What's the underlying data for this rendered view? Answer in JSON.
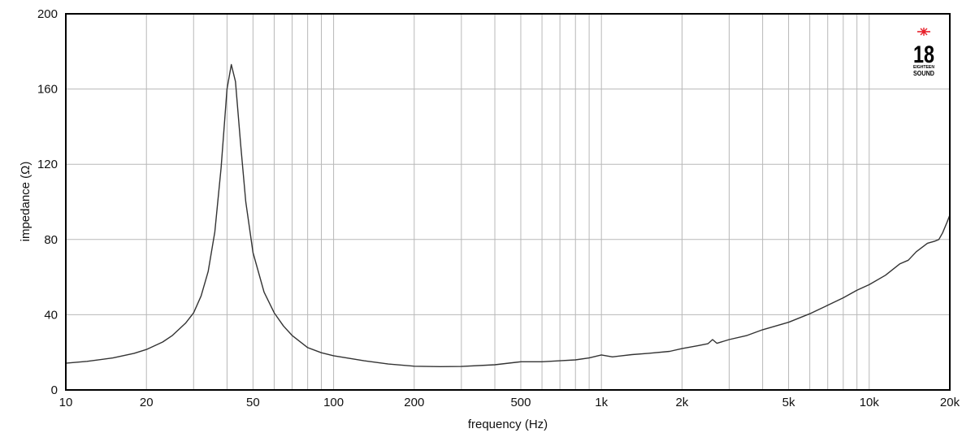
{
  "chart_data": {
    "type": "line",
    "title": "",
    "xlabel": "frequency (Hz)",
    "ylabel": "impedance (Ω)",
    "xscale": "log",
    "xlim": [
      10,
      20000
    ],
    "ylim": [
      0,
      200
    ],
    "grid": true,
    "legend": null,
    "x_ticks": [
      {
        "value": 10,
        "label": "10"
      },
      {
        "value": 20,
        "label": "20"
      },
      {
        "value": 50,
        "label": "50"
      },
      {
        "value": 100,
        "label": "100"
      },
      {
        "value": 200,
        "label": "200"
      },
      {
        "value": 500,
        "label": "500"
      },
      {
        "value": 1000,
        "label": "1k"
      },
      {
        "value": 2000,
        "label": "2k"
      },
      {
        "value": 5000,
        "label": "5k"
      },
      {
        "value": 10000,
        "label": "10k"
      },
      {
        "value": 20000,
        "label": "20k"
      }
    ],
    "y_ticks": [
      {
        "value": 0,
        "label": "0"
      },
      {
        "value": 40,
        "label": "40"
      },
      {
        "value": 80,
        "label": "80"
      },
      {
        "value": 120,
        "label": "120"
      },
      {
        "value": 160,
        "label": "160"
      },
      {
        "value": 200,
        "label": "200"
      }
    ],
    "x_gridlines": [
      20,
      30,
      40,
      50,
      60,
      70,
      80,
      90,
      100,
      200,
      300,
      400,
      500,
      600,
      700,
      800,
      900,
      1000,
      2000,
      3000,
      4000,
      5000,
      6000,
      7000,
      8000,
      9000,
      10000
    ],
    "series": [
      {
        "name": "impedance",
        "color": "#333333",
        "x": [
          10,
          12,
          15,
          18,
          20,
          23,
          25,
          28,
          30,
          32,
          34,
          36,
          38,
          40,
          41.5,
          43,
          45,
          47,
          50,
          55,
          60,
          65,
          70,
          80,
          90,
          100,
          130,
          160,
          200,
          250,
          300,
          400,
          500,
          600,
          700,
          800,
          900,
          1000,
          1100,
          1300,
          1500,
          1800,
          2000,
          2300,
          2500,
          2600,
          2700,
          3000,
          3500,
          4000,
          5000,
          6000,
          7000,
          8000,
          9000,
          10000,
          11500,
          13000,
          14000,
          15000,
          16500,
          17500,
          18200,
          18800,
          19500,
          20000
        ],
        "values": [
          14.2,
          15.2,
          17,
          19.5,
          21.5,
          25.5,
          29,
          35.5,
          41,
          50,
          63,
          84,
          118,
          160,
          173,
          164,
          130,
          100,
          73,
          52,
          41,
          34,
          29,
          22.5,
          19.8,
          18.2,
          15.5,
          13.8,
          12.6,
          12.4,
          12.5,
          13.4,
          15,
          15,
          15.5,
          16,
          17,
          18.6,
          17.6,
          18.8,
          19.5,
          20.5,
          22,
          23.6,
          24.6,
          26.8,
          24.8,
          26.8,
          29,
          32,
          36,
          40.5,
          45,
          49,
          53,
          56,
          61,
          67,
          69,
          73.5,
          78,
          79,
          80,
          83.5,
          89,
          93
        ]
      }
    ],
    "annotations": [
      {
        "type": "logo",
        "text": "18",
        "subtext": [
          "EIGHTEEN",
          "SOUND"
        ],
        "position": "top-right"
      }
    ]
  },
  "logo": {
    "number": "18",
    "line1": "EIGHTEEN",
    "line2": "SOUND",
    "star_color": "#e8202a"
  },
  "colors": {
    "curve": "#333333",
    "grid": "#b8b8b8",
    "frame": "#000000"
  }
}
